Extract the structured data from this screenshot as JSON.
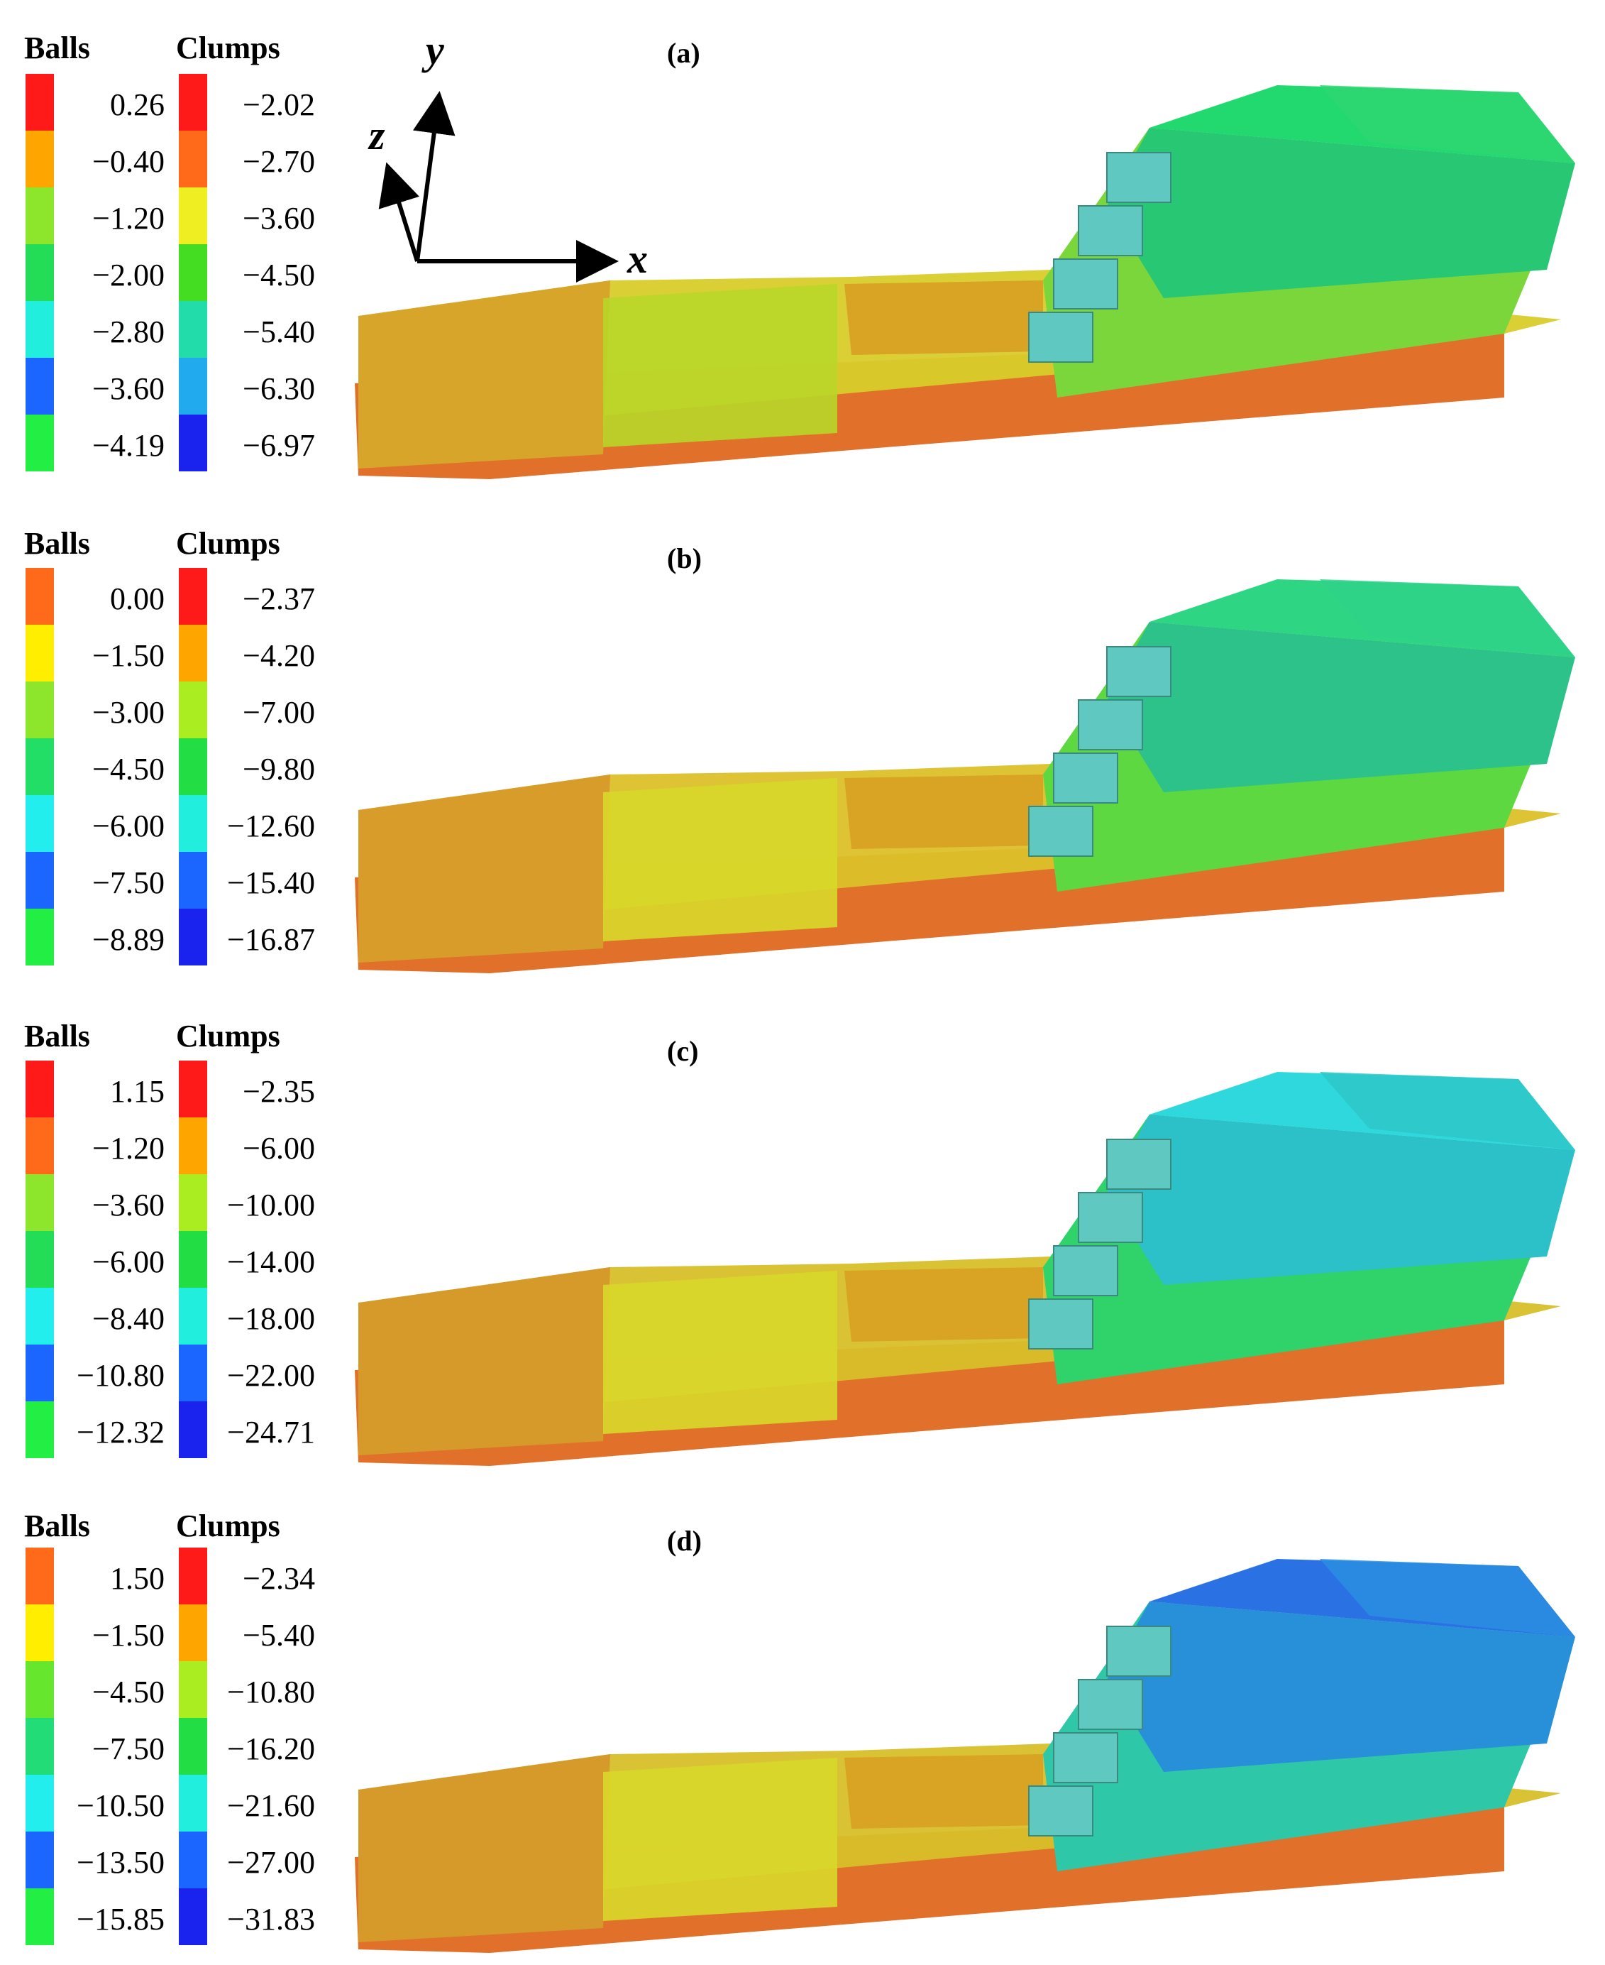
{
  "axes": {
    "x": "x",
    "y": "y",
    "z": "z"
  },
  "panels": [
    {
      "label": "(a)",
      "balls_header": "Balls",
      "clumps_header": "Clumps",
      "balls": [
        {
          "value": "0.26",
          "color": "#ff1a1a"
        },
        {
          "value": "−0.40",
          "color": "#ffa500"
        },
        {
          "value": "−1.20",
          "color": "#8ee62c"
        },
        {
          "value": "−2.00",
          "color": "#22dd55"
        },
        {
          "value": "−2.80",
          "color": "#22eedd"
        },
        {
          "value": "−3.60",
          "color": "#1a66ff"
        },
        {
          "value": "−4.19",
          "color": "#22ee44"
        }
      ],
      "clumps": [
        {
          "value": "−2.02",
          "color": "#ff1a1a"
        },
        {
          "value": "−2.70",
          "color": "#ff6a1a"
        },
        {
          "value": "−3.60",
          "color": "#eeee22"
        },
        {
          "value": "−4.50",
          "color": "#44dd22"
        },
        {
          "value": "−5.40",
          "color": "#22ddaa"
        },
        {
          "value": "−6.30",
          "color": "#22aaee"
        },
        {
          "value": "−6.97",
          "color": "#1a22ee"
        }
      ],
      "scene": {
        "floor_left": "#d6a52a",
        "floor_mid": "#d8cc2a",
        "floor_right": "#b8d628",
        "bench": "#d9a324",
        "slope_low": "#7ad63a",
        "slope_high": "#2ed672",
        "top": "#22d970",
        "side": "#28c774",
        "base": "#e0702a"
      }
    },
    {
      "label": "(b)",
      "balls_header": "Balls",
      "clumps_header": "Clumps",
      "balls": [
        {
          "value": "0.00",
          "color": "#ff6a1a"
        },
        {
          "value": "−1.50",
          "color": "#ffee00"
        },
        {
          "value": "−3.00",
          "color": "#8ee62c"
        },
        {
          "value": "−4.50",
          "color": "#22dd66"
        },
        {
          "value": "−6.00",
          "color": "#22eeee"
        },
        {
          "value": "−7.50",
          "color": "#1a66ff"
        },
        {
          "value": "−8.89",
          "color": "#22ee44"
        }
      ],
      "clumps": [
        {
          "value": "−2.37",
          "color": "#ff1a1a"
        },
        {
          "value": "−4.20",
          "color": "#ffa500"
        },
        {
          "value": "−7.00",
          "color": "#aaee22"
        },
        {
          "value": "−9.80",
          "color": "#22dd44"
        },
        {
          "value": "−12.60",
          "color": "#22eedd"
        },
        {
          "value": "−15.40",
          "color": "#1a66ff"
        },
        {
          "value": "−16.87",
          "color": "#1a22ee"
        }
      ],
      "scene": {
        "floor_left": "#d89c2a",
        "floor_mid": "#dcc02a",
        "floor_right": "#d8d82a",
        "bench": "#d9a324",
        "slope_low": "#5ed840",
        "slope_high": "#2fd28a",
        "top": "#2ed683",
        "side": "#2cc28a",
        "base": "#e0702a"
      }
    },
    {
      "label": "(c)",
      "balls_header": "Balls",
      "clumps_header": "Clumps",
      "balls": [
        {
          "value": "1.15",
          "color": "#ff1a1a"
        },
        {
          "value": "−1.20",
          "color": "#ff6a1a"
        },
        {
          "value": "−3.60",
          "color": "#8ee62c"
        },
        {
          "value": "−6.00",
          "color": "#22dd55"
        },
        {
          "value": "−8.40",
          "color": "#22eeee"
        },
        {
          "value": "−10.80",
          "color": "#1a66ff"
        },
        {
          "value": "−12.32",
          "color": "#22ee44"
        }
      ],
      "clumps": [
        {
          "value": "−2.35",
          "color": "#ff1a1a"
        },
        {
          "value": "−6.00",
          "color": "#ffa500"
        },
        {
          "value": "−10.00",
          "color": "#aaee22"
        },
        {
          "value": "−14.00",
          "color": "#22dd44"
        },
        {
          "value": "−18.00",
          "color": "#22eedd"
        },
        {
          "value": "−22.00",
          "color": "#1a66ff"
        },
        {
          "value": "−24.71",
          "color": "#1a22ee"
        }
      ],
      "scene": {
        "floor_left": "#d69a2a",
        "floor_mid": "#d8bf2a",
        "floor_right": "#d8d82a",
        "bench": "#d9a324",
        "slope_low": "#30d26a",
        "slope_high": "#2ec8c8",
        "top": "#2ed8dc",
        "side": "#2cc0c8",
        "base": "#e0702a"
      }
    },
    {
      "label": "(d)",
      "balls_header": "Balls",
      "clumps_header": "Clumps",
      "balls": [
        {
          "value": "1.50",
          "color": "#ff6a1a"
        },
        {
          "value": "−1.50",
          "color": "#ffee00"
        },
        {
          "value": "−4.50",
          "color": "#66e62c"
        },
        {
          "value": "−7.50",
          "color": "#22dd77"
        },
        {
          "value": "−10.50",
          "color": "#22eeee"
        },
        {
          "value": "−13.50",
          "color": "#1a66ff"
        },
        {
          "value": "−15.85",
          "color": "#22ee44"
        }
      ],
      "clumps": [
        {
          "value": "−2.34",
          "color": "#ff1a1a"
        },
        {
          "value": "−5.40",
          "color": "#ffa500"
        },
        {
          "value": "−10.80",
          "color": "#aaee22"
        },
        {
          "value": "−16.20",
          "color": "#22dd44"
        },
        {
          "value": "−21.60",
          "color": "#22eedd"
        },
        {
          "value": "−27.00",
          "color": "#1a66ff"
        },
        {
          "value": "−31.83",
          "color": "#1a22ee"
        }
      ],
      "scene": {
        "floor_left": "#d69a2a",
        "floor_mid": "#d8bf2a",
        "floor_right": "#d8d82a",
        "bench": "#d9a324",
        "slope_low": "#2ec8a8",
        "slope_high": "#2a8ee0",
        "top": "#2a72e4",
        "side": "#2890d8",
        "base": "#e0702a"
      }
    }
  ]
}
